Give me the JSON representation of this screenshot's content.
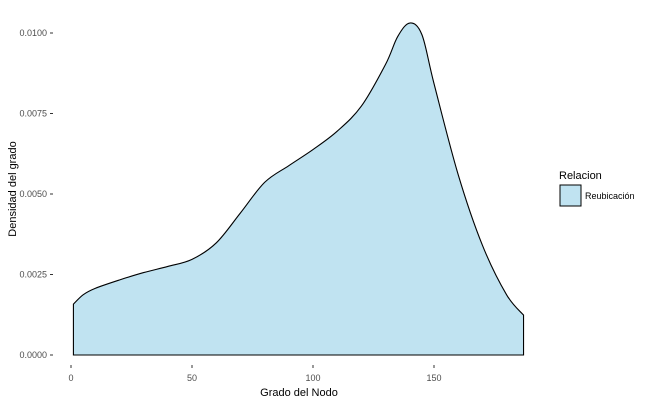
{
  "chart_data": {
    "type": "area",
    "xlabel": "Grado del Nodo",
    "ylabel": "Densidad del grado",
    "xlim": [
      0,
      188
    ],
    "ylim": [
      0,
      0.0103
    ],
    "x_ticks": [
      0,
      50,
      100,
      150
    ],
    "x_tick_labels": [
      "0",
      "50",
      "100",
      "150"
    ],
    "y_ticks": [
      0,
      0.0025,
      0.005,
      0.0075,
      0.01
    ],
    "y_tick_labels": [
      "0.0000",
      "0.0025",
      "0.0050",
      "0.0075",
      "0.0100"
    ],
    "grid": false,
    "legend": {
      "title": "Relacion",
      "position": "right",
      "entries": [
        "Reubicación"
      ]
    },
    "series": [
      {
        "name": "Reubicación",
        "fill": "#c0e3f1",
        "stroke": "#000000",
        "x": [
          1,
          5,
          10,
          20,
          30,
          40,
          50,
          60,
          70,
          80,
          90,
          100,
          110,
          120,
          130,
          135,
          140,
          145,
          150,
          160,
          170,
          180,
          187
        ],
        "y": [
          0.00158,
          0.00187,
          0.00207,
          0.00233,
          0.00256,
          0.00275,
          0.00297,
          0.00348,
          0.00441,
          0.00536,
          0.00588,
          0.00638,
          0.00695,
          0.00773,
          0.00903,
          0.00989,
          0.01031,
          0.00995,
          0.00843,
          0.0056,
          0.00341,
          0.00187,
          0.00124
        ]
      }
    ]
  }
}
